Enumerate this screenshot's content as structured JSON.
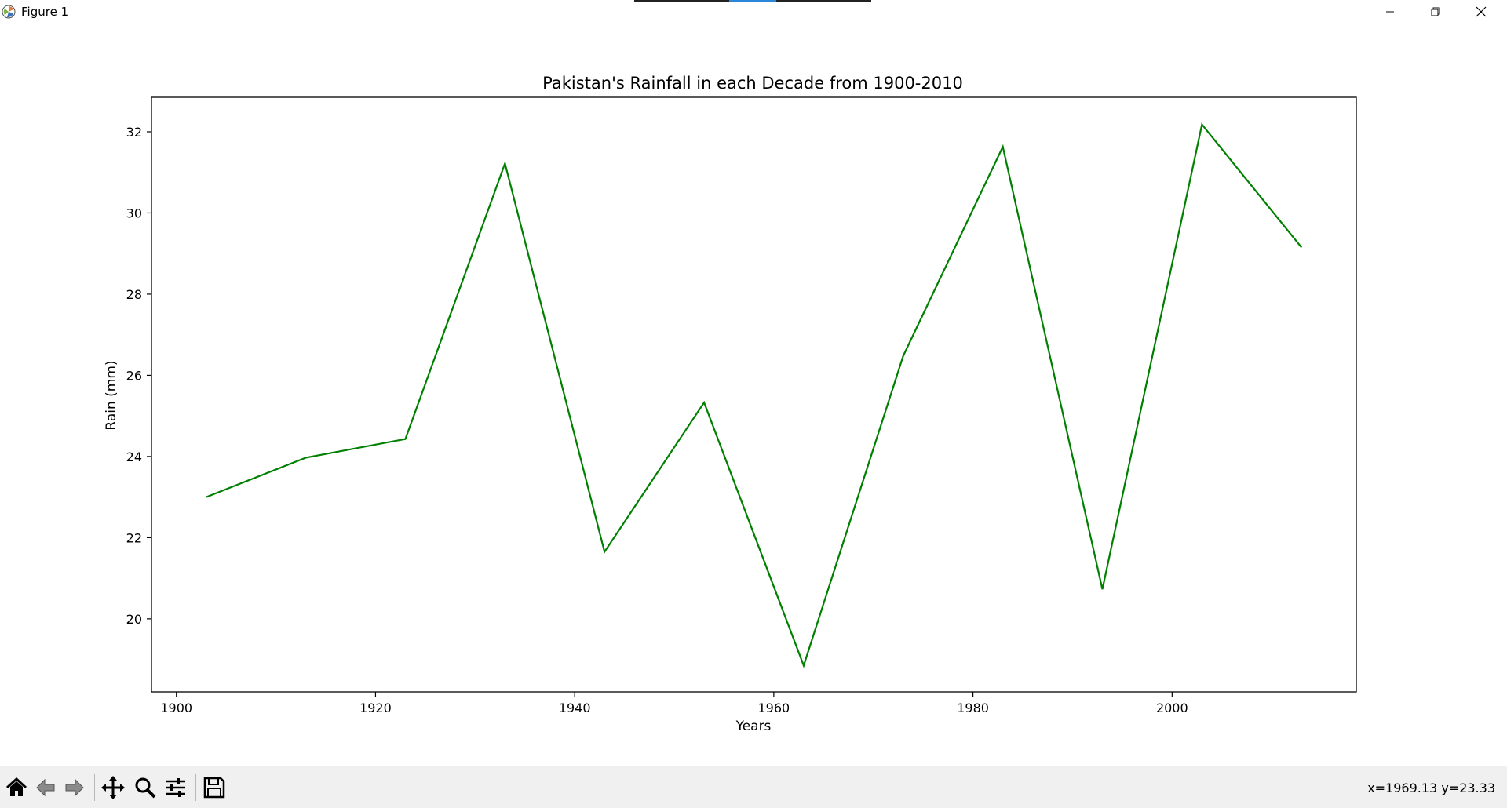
{
  "window": {
    "title": "Figure 1",
    "icons": {
      "app": "matplotlib-icon",
      "minimize": "minimize-icon",
      "maximize": "restore-icon",
      "close": "close-icon"
    }
  },
  "toolbar": {
    "buttons": [
      {
        "name": "home-icon",
        "tooltip": "Reset original view"
      },
      {
        "name": "back-arrow-icon",
        "tooltip": "Back"
      },
      {
        "name": "forward-arrow-icon",
        "tooltip": "Forward"
      },
      {
        "name": "pan-move-icon",
        "tooltip": "Pan"
      },
      {
        "name": "zoom-magnifier-icon",
        "tooltip": "Zoom"
      },
      {
        "name": "configure-subplots-icon",
        "tooltip": "Configure subplots"
      },
      {
        "name": "save-disk-icon",
        "tooltip": "Save"
      }
    ],
    "coords": "x=1969.13 y=23.33"
  },
  "colors": {
    "line": "#008000",
    "axes": "#000000",
    "background": "#ffffff",
    "toolbar": "#f0f0f0"
  },
  "chart_data": {
    "type": "line",
    "title": "Pakistan's Rainfall in each Decade from 1900-2010",
    "xlabel": "Years",
    "ylabel": "Rain (mm)",
    "x": [
      1903,
      1913,
      1923,
      1933,
      1943,
      1953,
      1963,
      1973,
      1983,
      1993,
      2003,
      2013
    ],
    "series": [
      {
        "values": [
          23.0,
          23.97,
          24.43,
          31.22,
          21.65,
          25.33,
          18.85,
          26.48,
          31.63,
          20.73,
          32.18,
          29.15
        ],
        "color": "#008000"
      }
    ],
    "xlim": [
      1897.5,
      2018.5
    ],
    "ylim": [
      18.2,
      32.85
    ],
    "xticks": [
      1900,
      1920,
      1940,
      1960,
      1980,
      2000
    ],
    "yticks": [
      20,
      22,
      24,
      26,
      28,
      30,
      32
    ],
    "grid": false,
    "legend": "none"
  }
}
